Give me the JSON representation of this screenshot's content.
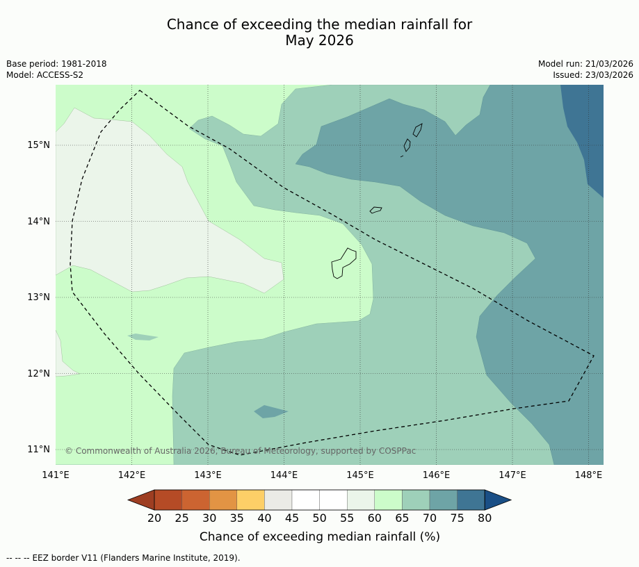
{
  "header": {
    "title_line1": "Chance of exceeding the median rainfall for",
    "title_line2": "May 2026",
    "base_period": "Base period: 1981-2018",
    "model": "Model: ACCESS-S2",
    "model_run": "Model run: 21/03/2026",
    "issued": "Issued: 23/03/2026"
  },
  "map": {
    "lon_ticks": [
      "141°E",
      "142°E",
      "143°E",
      "144°E",
      "145°E",
      "146°E",
      "147°E",
      "148°E"
    ],
    "lat_ticks": [
      "15°N",
      "14°N",
      "13°N",
      "12°N",
      "11°N"
    ],
    "copyright": "© Commonwealth of Australia 2026, Bureau of Meteorology, supported by COSPPac",
    "colors": {
      "c45_50": "#e9ebe6",
      "c55_60": "#ebf5ea",
      "c60_65": "#ccfcca",
      "c65_70": "#9ed0b9",
      "c70_75": "#6ea4a6",
      "c75_80": "#3f7594"
    }
  },
  "colorbar": {
    "title": "Chance of exceeding median rainfall (%)",
    "ticks": [
      "20",
      "25",
      "30",
      "35",
      "40",
      "45",
      "50",
      "55",
      "60",
      "65",
      "70",
      "75",
      "80"
    ],
    "colors": [
      "#9e3e22",
      "#b54b26",
      "#cc6431",
      "#e29444",
      "#fdcf67",
      "#ebebe6",
      "#ffffff",
      "#ffffff",
      "#ebf5ea",
      "#ccfcca",
      "#9ed0b9",
      "#6ea4a6",
      "#3f7594",
      "#1a4f86"
    ]
  },
  "footer": {
    "legend_symbol": "--  --  --",
    "legend_text": "EEZ border V11 (Flanders Marine Institute, 2019)."
  }
}
